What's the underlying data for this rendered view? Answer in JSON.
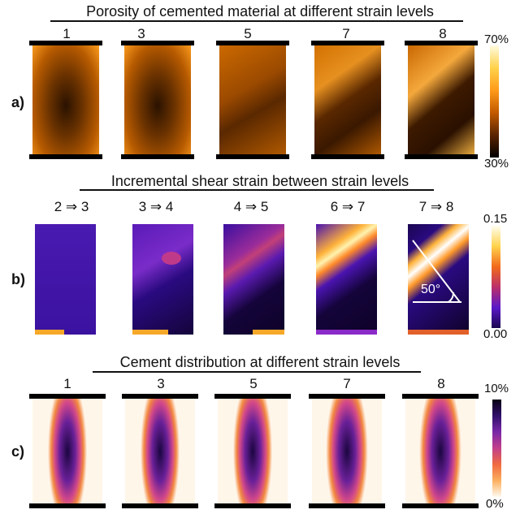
{
  "rows": [
    {
      "letter": "a)",
      "title": "Porosity of cemented material at different strain levels",
      "labels": [
        "1",
        "3",
        "5",
        "7",
        "8"
      ],
      "colorbar": {
        "max": "70%",
        "min": "30%",
        "colors": [
          "#fffbe0",
          "#ffd24a",
          "#ff9a1a",
          "#c25a00",
          "#5a2400",
          "#000000"
        ]
      }
    },
    {
      "letter": "b)",
      "title": "Incremental shear strain between strain levels",
      "labels": [
        "2 ⇒ 3",
        "3 ⇒ 4",
        "4 ⇒ 5",
        "6 ⇒ 7",
        "7 ⇒ 8"
      ],
      "colorbar": {
        "max": "0.15",
        "min": "0.00",
        "colors": [
          "#fffef0",
          "#ffd34d",
          "#f26a1b",
          "#bb2f6b",
          "#5a18c8",
          "#1a0550"
        ]
      },
      "angle_label": "50°"
    },
    {
      "letter": "c)",
      "title": "Cement distribution at different strain levels",
      "labels": [
        "1",
        "3",
        "5",
        "7",
        "8"
      ],
      "colorbar": {
        "max": "10%",
        "min": "0%",
        "colors": [
          "#0a0014",
          "#30106a",
          "#7a28a8",
          "#c2408a",
          "#f06a40",
          "#fbb060",
          "#fffaf0"
        ]
      }
    }
  ]
}
